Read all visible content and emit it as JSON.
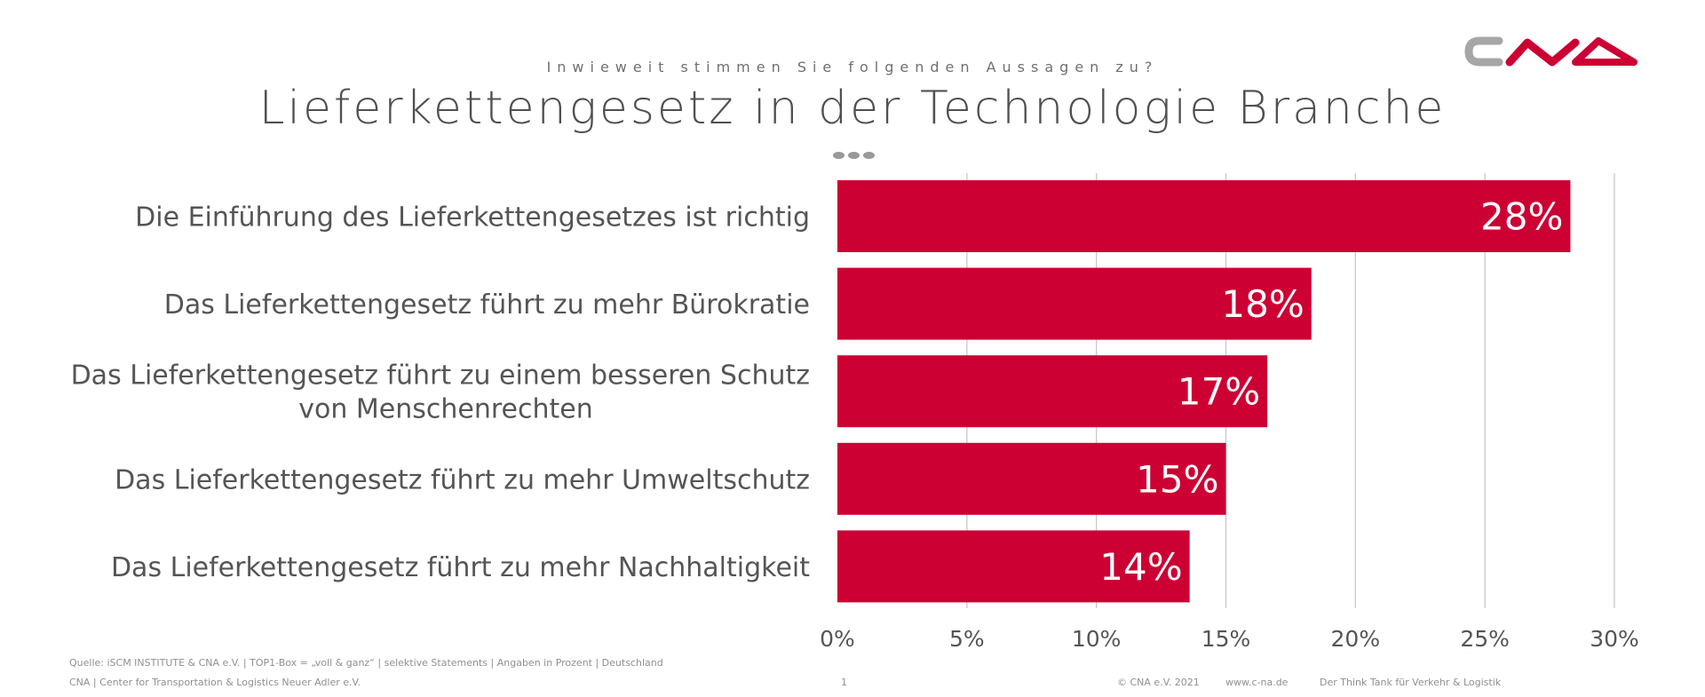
{
  "header": {
    "subtitle": "Inwieweit stimmen Sie folgenden Aussagen zu?",
    "title": "Lieferkettengesetz in der Technologie Branche"
  },
  "logo": {
    "text": "CNA",
    "colors": [
      "#a6a6a6",
      "#cc0033"
    ]
  },
  "colors": {
    "bar": "#cc0033",
    "grid": "#c8c8c8",
    "label": "#555555",
    "bar_label": "#ffffff"
  },
  "chart_data": {
    "type": "bar",
    "orientation": "horizontal",
    "categories": [
      "Die Einführung des Lieferkettengesetzes ist richtig",
      "Das Lieferkettengesetz führt zu mehr Bürokratie",
      "Das Lieferkettengesetz führt zu einem besseren Schutz von Menschenrechten",
      "Das Lieferkettengesetz führt zu mehr Umweltschutz",
      "Das Lieferkettengesetz führt zu mehr Nachhaltigkeit"
    ],
    "category_lines": [
      [
        "Die Einführung des Lieferkettengesetzes ist richtig"
      ],
      [
        "Das Lieferkettengesetz führt zu mehr Bürokratie"
      ],
      [
        "Das Lieferkettengesetz führt zu einem besseren Schutz",
        "von Menschenrechten"
      ],
      [
        "Das Lieferkettengesetz führt zu mehr Umweltschutz"
      ],
      [
        "Das Lieferkettengesetz führt zu mehr Nachhaltigkeit"
      ]
    ],
    "values": [
      28.3,
      18.3,
      16.6,
      15,
      13.6
    ],
    "data_labels": [
      "28%",
      "18%",
      "17%",
      "15%",
      "14%"
    ],
    "xlim": [
      0,
      30
    ],
    "xticks": [
      0,
      5,
      10,
      15,
      20,
      25,
      30
    ],
    "xtick_labels": [
      "0%",
      "5%",
      "10%",
      "15%",
      "20%",
      "25%",
      "30%"
    ],
    "grid": true,
    "title": "Lieferkettengesetz in der Technologie Branche",
    "xlabel": "",
    "ylabel": ""
  },
  "footer": {
    "source": "Quelle: iSCM INSTITUTE & CNA e.V. | TOP1-Box = „voll & ganz“ | selektive Statements | Angaben in Prozent | Deutschland",
    "org": "CNA | Center for Transportation & Logistics Neuer Adler e.V.",
    "page": "1",
    "copyright": "© CNA e.V. 2021",
    "website": "www.c-na.de",
    "tagline": "Der Think Tank für Verkehr & Logistik"
  }
}
